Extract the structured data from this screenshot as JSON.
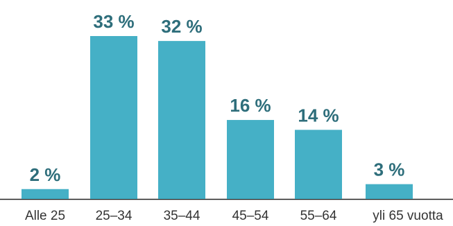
{
  "chart_data": {
    "type": "bar",
    "categories": [
      "Alle 25",
      "25–34",
      "35–44",
      "45–54",
      "55–64",
      "yli 65 vuotta"
    ],
    "values": [
      2,
      33,
      32,
      16,
      14,
      3
    ],
    "data_labels": [
      "2 %",
      "33 %",
      "32 %",
      "16 %",
      "14 %",
      "3 %"
    ],
    "ylim": [
      0,
      33
    ],
    "grid": false,
    "legend": "none",
    "colors": {
      "bar": "#45B0C6",
      "label": "#2E6E7B",
      "tick": "#333333",
      "baseline": "#222222"
    }
  }
}
